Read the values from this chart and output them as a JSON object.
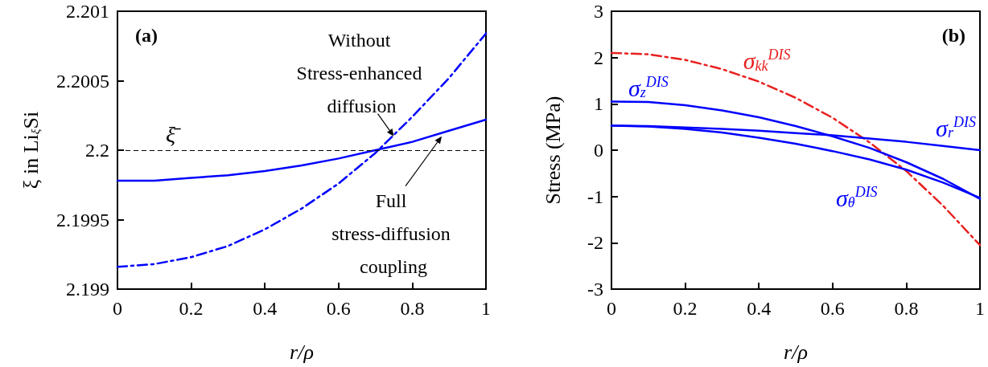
{
  "chart_data": [
    {
      "type": "line",
      "xlabel": "r/ρ",
      "ylabel": "ξ in Li$_{ξ}$Si",
      "xlim": [
        0,
        1
      ],
      "ylim": [
        2.199,
        2.201
      ],
      "xticks": [
        0,
        0.2,
        0.4,
        0.6,
        0.8,
        1
      ],
      "yticks": [
        2.199,
        2.1995,
        2.2,
        2.2005,
        2.201
      ],
      "grid": false,
      "marker": "none",
      "x": [
        0,
        0.1,
        0.2,
        0.3,
        0.4,
        0.5,
        0.6,
        0.7,
        0.8,
        0.9,
        1
      ],
      "series": [
        {
          "color": "#0000ff",
          "line_style": "solid",
          "values": [
            2.19978,
            2.19978,
            2.1998,
            2.19982,
            2.19985,
            2.19989,
            2.19994,
            2.2,
            2.20006,
            2.20014,
            2.20022
          ]
        },
        {
          "color": "#0000ff",
          "line_style": "dashdot",
          "values": [
            2.19916,
            2.19918,
            2.19923,
            2.19931,
            2.19943,
            2.19958,
            2.19976,
            2.19998,
            2.20024,
            2.20052,
            2.20084
          ]
        }
      ],
      "ref_lines": [
        {
          "axis": "y",
          "value": 2.2,
          "label": "ξ̄",
          "color": "#000000",
          "line_style": "dashed"
        }
      ],
      "annotations": [
        "(a)",
        {
          "text": "Without Stress-enhanced diffusion",
          "x": 0.75,
          "y": 2.2001
        },
        {
          "text": "Full stress-diffusion coupling",
          "x": 0.88,
          "y": 2.2001
        }
      ]
    },
    {
      "type": "line",
      "xlabel": "r/ρ",
      "ylabel": "Stress (MPa)",
      "xlim": [
        0,
        1
      ],
      "ylim": [
        -3,
        3
      ],
      "xticks": [
        0,
        0.2,
        0.4,
        0.6,
        0.8,
        1
      ],
      "yticks": [
        -3,
        -2,
        -1,
        0,
        1,
        2,
        3
      ],
      "grid": false,
      "marker": "none",
      "x": [
        0,
        0.1,
        0.2,
        0.3,
        0.4,
        0.5,
        0.6,
        0.7,
        0.8,
        0.9,
        1
      ],
      "series": [
        {
          "name": "σ$_{kk}$$^{DIS}$",
          "color": "#e8201f",
          "line_style": "dashdot",
          "values": [
            2.1,
            2.07,
            1.95,
            1.75,
            1.48,
            1.13,
            0.7,
            0.17,
            -0.45,
            -1.2,
            -2.05
          ]
        },
        {
          "name": "σ$_{z}$$^{DIS}$",
          "color": "#0000ff",
          "line_style": "solid",
          "values": [
            1.05,
            1.04,
            0.97,
            0.86,
            0.71,
            0.52,
            0.3,
            0.05,
            -0.26,
            -0.62,
            -1.05
          ]
        },
        {
          "name": "σ$_{r}$$^{DIS}$",
          "color": "#0000ff",
          "line_style": "solid",
          "values": [
            0.53,
            0.52,
            0.49,
            0.46,
            0.42,
            0.37,
            0.32,
            0.25,
            0.18,
            0.09,
            0
          ]
        },
        {
          "name": "σ$_{θ}$$^{DIS}$",
          "color": "#0000ff",
          "line_style": "solid",
          "values": [
            0.53,
            0.51,
            0.46,
            0.38,
            0.27,
            0.14,
            -0.02,
            -0.2,
            -0.42,
            -0.7,
            -1.03
          ]
        }
      ],
      "annotations": [
        "(b)"
      ]
    }
  ]
}
